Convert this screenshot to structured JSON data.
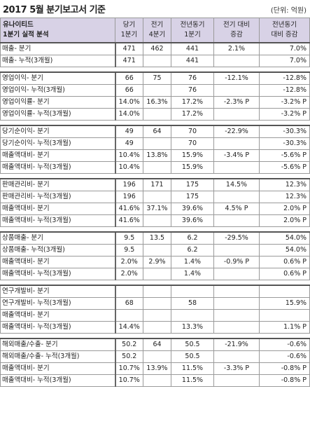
{
  "title": "2017 5월 분기보고서 기준",
  "unit": "(단위: 억원)",
  "header": {
    "company": "유나이티드",
    "subtitle": "1분기 실적 분석",
    "col1a": "당기",
    "col1b": "1분기",
    "col2a": "전기",
    "col2b": "4분기",
    "col3a": "전년동기",
    "col3b": "1분기",
    "col4a": "전기 대비",
    "col4b": "증감",
    "col5a": "전년동기",
    "col5b": "대비 증감"
  },
  "groups": [
    {
      "rows": [
        {
          "label": "매출- 분기",
          "v1": "471",
          "v2": "462",
          "v3": "441",
          "v4": "2.1%",
          "v5": "7.0%"
        },
        {
          "label": "매출- 누적(3개월)",
          "v1": "471",
          "v2": "",
          "v3": "441",
          "v4": "",
          "v5": "7.0%"
        }
      ]
    },
    {
      "rows": [
        {
          "label": "영업이익- 분기",
          "v1": "66",
          "v2": "75",
          "v3": "76",
          "v4": "-12.1%",
          "v5": "-12.8%"
        },
        {
          "label": "영업이익- 누적(3개월)",
          "v1": "66",
          "v2": "",
          "v3": "76",
          "v4": "",
          "v5": "-12.8%"
        },
        {
          "label": "영업이익률- 분기",
          "v1": "14.0%",
          "v2": "16.3%",
          "v3": "17.2%",
          "v4": "-2.3% P",
          "v5": "-3.2% P"
        },
        {
          "label": "영업이익률- 누적(3개월)",
          "v1": "14.0%",
          "v2": "",
          "v3": "17.2%",
          "v4": "",
          "v5": "-3.2% P"
        }
      ]
    },
    {
      "rows": [
        {
          "label": "당기순이익- 분기",
          "v1": "49",
          "v2": "64",
          "v3": "70",
          "v4": "-22.9%",
          "v5": "-30.3%"
        },
        {
          "label": "당기순이익- 누적(3개월)",
          "v1": "49",
          "v2": "",
          "v3": "70",
          "v4": "",
          "v5": "-30.3%"
        },
        {
          "label": "매출액대비- 분기",
          "v1": "10.4%",
          "v2": "13.8%",
          "v3": "15.9%",
          "v4": "-3.4% P",
          "v5": "-5.6% P"
        },
        {
          "label": "매출액대비- 누적(3개월)",
          "v1": "10.4%",
          "v2": "",
          "v3": "15.9%",
          "v4": "",
          "v5": "-5.6% P"
        }
      ]
    },
    {
      "rows": [
        {
          "label": "판매관리비- 분기",
          "v1": "196",
          "v2": "171",
          "v3": "175",
          "v4": "14.5%",
          "v5": "12.3%"
        },
        {
          "label": "판매관리비- 누적(3개월)",
          "v1": "196",
          "v2": "",
          "v3": "175",
          "v4": "",
          "v5": "12.3%"
        },
        {
          "label": "매출액대비- 분기",
          "v1": "41.6%",
          "v2": "37.1%",
          "v3": "39.6%",
          "v4": "4.5% P",
          "v5": "2.0% P"
        },
        {
          "label": "매출액대비- 누적(3개월)",
          "v1": "41.6%",
          "v2": "",
          "v3": "39.6%",
          "v4": "",
          "v5": "2.0% P"
        }
      ]
    },
    {
      "rows": [
        {
          "label": "상품매출- 분기",
          "v1": "9.5",
          "v2": "13.5",
          "v3": "6.2",
          "v4": "-29.5%",
          "v5": "54.0%"
        },
        {
          "label": "상품매출- 누적(3개월)",
          "v1": "9.5",
          "v2": "",
          "v3": "6.2",
          "v4": "",
          "v5": "54.0%"
        },
        {
          "label": "매출액대비- 분기",
          "v1": "2.0%",
          "v2": "2.9%",
          "v3": "1.4%",
          "v4": "-0.9% P",
          "v5": "0.6% P"
        },
        {
          "label": "매출액대비- 누적(3개월)",
          "v1": "2.0%",
          "v2": "",
          "v3": "1.4%",
          "v4": "",
          "v5": "0.6% P"
        }
      ]
    },
    {
      "rows": [
        {
          "label": "연구개발비- 분기",
          "v1": "",
          "v2": "",
          "v3": "",
          "v4": "",
          "v5": ""
        },
        {
          "label": "연구개발비- 누적(3개월)",
          "v1": "68",
          "v2": "",
          "v3": "58",
          "v4": "",
          "v5": "15.9%"
        },
        {
          "label": "매출액대비- 분기",
          "v1": "",
          "v2": "",
          "v3": "",
          "v4": "",
          "v5": ""
        },
        {
          "label": "매출액대비- 누적(3개월)",
          "v1": "14.4%",
          "v2": "",
          "v3": "13.3%",
          "v4": "",
          "v5": "1.1% P"
        }
      ]
    },
    {
      "rows": [
        {
          "label": "해외매출/수출- 분기",
          "v1": "50.2",
          "v2": "64",
          "v3": "50.5",
          "v4": "-21.9%",
          "v5": "-0.6%"
        },
        {
          "label": "해외매출/수출- 누적(3개월)",
          "v1": "50.2",
          "v2": "",
          "v3": "50.5",
          "v4": "",
          "v5": "-0.6%"
        },
        {
          "label": "매출액대비- 분기",
          "v1": "10.7%",
          "v2": "13.9%",
          "v3": "11.5%",
          "v4": "-3.3% P",
          "v5": "-0.8% P"
        },
        {
          "label": "매출액대비- 누적(3개월)",
          "v1": "10.7%",
          "v2": "",
          "v3": "11.5%",
          "v4": "",
          "v5": "-0.8% P"
        }
      ]
    }
  ]
}
